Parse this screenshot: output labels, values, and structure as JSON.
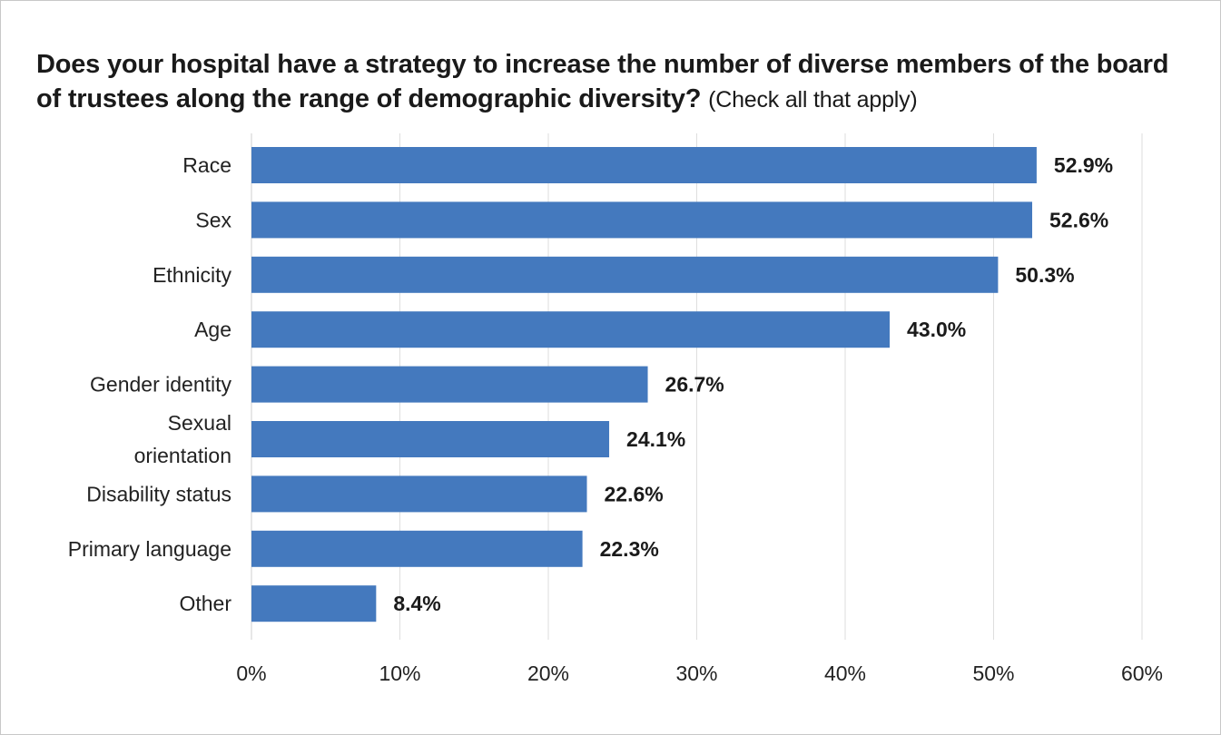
{
  "chart_data": {
    "type": "bar",
    "orientation": "horizontal",
    "title": "Does your hospital have a strategy to increase the number of diverse members of the board of trustees along the range of demographic diversity?",
    "subtitle": "(Check all that apply)",
    "categories": [
      [
        "Race"
      ],
      [
        "Sex"
      ],
      [
        "Ethnicity"
      ],
      [
        "Age"
      ],
      [
        "Gender identity"
      ],
      [
        "Sexual",
        "orientation"
      ],
      [
        "Disability status"
      ],
      [
        "Primary language"
      ],
      [
        "Other"
      ]
    ],
    "values": [
      52.9,
      52.6,
      50.3,
      43.0,
      26.7,
      24.1,
      22.6,
      22.3,
      8.4
    ],
    "data_labels": [
      "52.9%",
      "52.6%",
      "50.3%",
      "43.0%",
      "26.7%",
      "24.1%",
      "22.6%",
      "22.3%",
      "8.4%"
    ],
    "xlim": [
      0,
      60
    ],
    "x_ticks": [
      0,
      10,
      20,
      30,
      40,
      50,
      60
    ],
    "x_tick_labels": [
      "0%",
      "10%",
      "20%",
      "30%",
      "40%",
      "50%",
      "60%"
    ],
    "xlabel": "",
    "ylabel": "",
    "grid": "vertical",
    "legend": "none",
    "colors": {
      "bar": "#4479be",
      "grid": "#dedede",
      "text": "#1a1a1a"
    }
  }
}
